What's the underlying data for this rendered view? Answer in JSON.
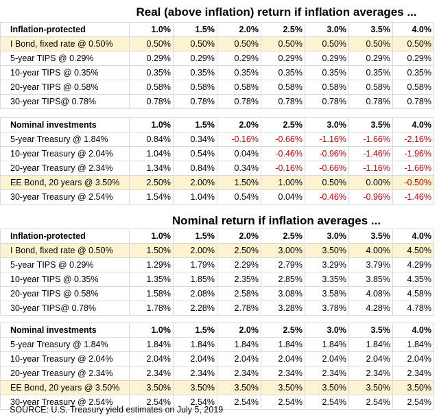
{
  "title1": "Real (above inflation) return if inflation averages ...",
  "title2": "Nominal return if inflation averages ...",
  "rates": [
    "1.0%",
    "1.5%",
    "2.0%",
    "2.5%",
    "3.0%",
    "3.5%",
    "4.0%"
  ],
  "source": "SOURCE: U.S. Treasury yield estimates on July 5, 2019",
  "sections": [
    {
      "header": "Inflation-protected",
      "rows": [
        {
          "label": "I Bond, fixed rate @ 0.50%",
          "highlight": true,
          "values": [
            "0.50%",
            "0.50%",
            "0.50%",
            "0.50%",
            "0.50%",
            "0.50%",
            "0.50%"
          ]
        },
        {
          "label": "5-year TIPS @ 0.29%",
          "highlight": false,
          "values": [
            "0.29%",
            "0.29%",
            "0.29%",
            "0.29%",
            "0.29%",
            "0.29%",
            "0.29%"
          ]
        },
        {
          "label": "10-year TIPS @ 0.35%",
          "highlight": false,
          "values": [
            "0.35%",
            "0.35%",
            "0.35%",
            "0.35%",
            "0.35%",
            "0.35%",
            "0.35%"
          ]
        },
        {
          "label": "20-year TIPS @ 0.58%",
          "highlight": false,
          "values": [
            "0.58%",
            "0.58%",
            "0.58%",
            "0.58%",
            "0.58%",
            "0.58%",
            "0.58%"
          ]
        },
        {
          "label": "30-year TIPS@ 0.78%",
          "highlight": false,
          "values": [
            "0.78%",
            "0.78%",
            "0.78%",
            "0.78%",
            "0.78%",
            "0.78%",
            "0.78%"
          ]
        }
      ]
    },
    {
      "header": "Nominal investments",
      "rows": [
        {
          "label": "5-year Treasury @ 1.84%",
          "highlight": false,
          "values": [
            "0.84%",
            "0.34%",
            "-0.16%",
            "-0.66%",
            "-1.16%",
            "-1.66%",
            "-2.16%"
          ]
        },
        {
          "label": "10-year Treasury @ 2.04%",
          "highlight": false,
          "values": [
            "1.04%",
            "0.54%",
            "0.04%",
            "-0.46%",
            "-0.96%",
            "-1.46%",
            "-1.96%"
          ]
        },
        {
          "label": "20-year Treasury @ 2.34%",
          "highlight": false,
          "values": [
            "1.34%",
            "0.84%",
            "0.34%",
            "-0.16%",
            "-0.66%",
            "-1.16%",
            "-1.66%"
          ]
        },
        {
          "label": "EE Bond, 20 years @ 3.50%",
          "highlight": true,
          "values": [
            "2.50%",
            "2.00%",
            "1.50%",
            "1.00%",
            "0.50%",
            "0.00%",
            "-0.50%"
          ]
        },
        {
          "label": "30-year Treasury @ 2.54%",
          "highlight": false,
          "values": [
            "1.54%",
            "1.04%",
            "0.54%",
            "0.04%",
            "-0.46%",
            "-0.96%",
            "-1.46%"
          ]
        }
      ]
    },
    {
      "header": "Inflation-protected",
      "rows": [
        {
          "label": "I Bond, fixed rate @ 0.50%",
          "highlight": true,
          "values": [
            "1.50%",
            "2.00%",
            "2.50%",
            "3.00%",
            "3.50%",
            "4.00%",
            "4.50%"
          ]
        },
        {
          "label": "5-year TIPS @ 0.29%",
          "highlight": false,
          "values": [
            "1.29%",
            "1.79%",
            "2.29%",
            "2.79%",
            "3.29%",
            "3.79%",
            "4.29%"
          ]
        },
        {
          "label": "10-year TIPS @ 0.35%",
          "highlight": false,
          "values": [
            "1.35%",
            "1.85%",
            "2.35%",
            "2.85%",
            "3.35%",
            "3.85%",
            "4.35%"
          ]
        },
        {
          "label": "20-year TIPS @ 0.58%",
          "highlight": false,
          "values": [
            "1.58%",
            "2.08%",
            "2.58%",
            "3.08%",
            "3.58%",
            "4.08%",
            "4.58%"
          ]
        },
        {
          "label": "30-year TIPS@ 0.78%",
          "highlight": false,
          "values": [
            "1.78%",
            "2.28%",
            "2.78%",
            "3.28%",
            "3.78%",
            "4.28%",
            "4.78%"
          ]
        }
      ]
    },
    {
      "header": "Nominal investments",
      "rows": [
        {
          "label": "5-year Treasury @ 1.84%",
          "highlight": false,
          "values": [
            "1.84%",
            "1.84%",
            "1.84%",
            "1.84%",
            "1.84%",
            "1.84%",
            "1.84%"
          ]
        },
        {
          "label": "10-year Treasury @ 2.04%",
          "highlight": false,
          "values": [
            "2.04%",
            "2.04%",
            "2.04%",
            "2.04%",
            "2.04%",
            "2.04%",
            "2.04%"
          ]
        },
        {
          "label": "20-year Treasury @ 2.34%",
          "highlight": false,
          "values": [
            "2.34%",
            "2.34%",
            "2.34%",
            "2.34%",
            "2.34%",
            "2.34%",
            "2.34%"
          ]
        },
        {
          "label": "EE Bond, 20 years @ 3.50%",
          "highlight": true,
          "values": [
            "3.50%",
            "3.50%",
            "3.50%",
            "3.50%",
            "3.50%",
            "3.50%",
            "3.50%"
          ]
        },
        {
          "label": "30-year Treasury @ 2.54%",
          "highlight": false,
          "values": [
            "2.54%",
            "2.54%",
            "2.54%",
            "2.54%",
            "2.54%",
            "2.54%",
            "2.54%"
          ]
        }
      ]
    }
  ],
  "colors": {
    "highlight": "#fdf3d0",
    "negative": "#c00000",
    "gridline": "#d9d9d9"
  }
}
